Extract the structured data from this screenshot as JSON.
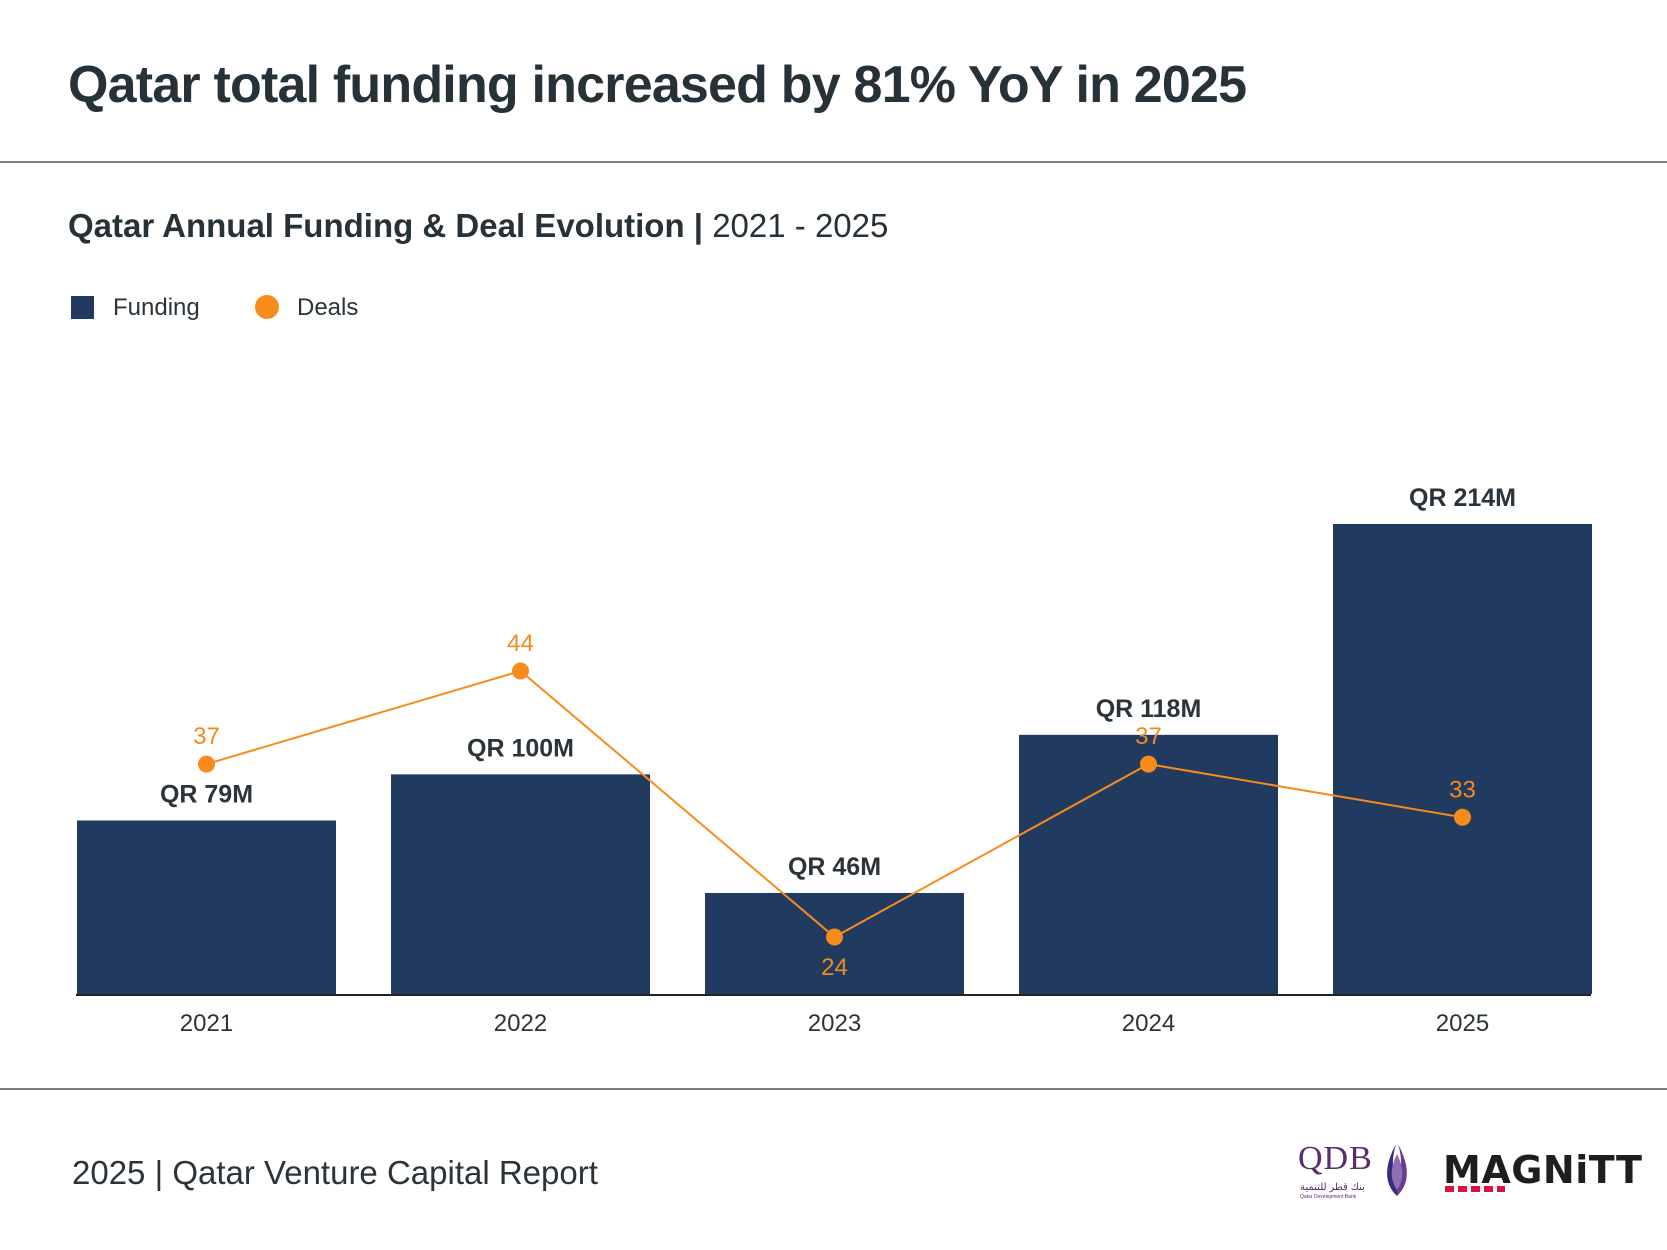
{
  "headline": "Qatar total funding increased by 81% YoY in 2025",
  "subtitle": {
    "bold": "Qatar Annual Funding & Deal Evolution |",
    "regular": " 2021 - 2025"
  },
  "legend": {
    "funding": "Funding",
    "deals": "Deals"
  },
  "colors": {
    "funding": "#203a60",
    "deals": "#f78b1c",
    "deals_label": "#f28a1f",
    "text": "#2a343a"
  },
  "chart_data": {
    "type": "bar",
    "categories": [
      "2021",
      "2022",
      "2023",
      "2024",
      "2025"
    ],
    "series": [
      {
        "name": "Funding",
        "type": "bar",
        "values": [
          79,
          100,
          46,
          118,
          214
        ],
        "labels": [
          "QR 79M",
          "QR 100M",
          "QR 46M",
          "QR 118M",
          "QR 214M"
        ]
      },
      {
        "name": "Deals",
        "type": "line",
        "values": [
          37,
          44,
          24,
          37,
          33
        ],
        "labels": [
          "37",
          "44",
          "24",
          "37",
          "33"
        ]
      }
    ],
    "title": "Qatar Annual Funding & Deal Evolution | 2021 - 2025",
    "legend_position": "top-left",
    "grid": false
  },
  "footer": {
    "text": "2025 | Qatar Venture Capital Report",
    "logos": {
      "qdb": {
        "mark": "QDB",
        "arabic": "بنك قطر للتنمية",
        "english": "Qatar Development Bank",
        "icon": "qdb-flame-icon"
      },
      "magnitt": {
        "mark": "MAGNiTT"
      }
    }
  }
}
